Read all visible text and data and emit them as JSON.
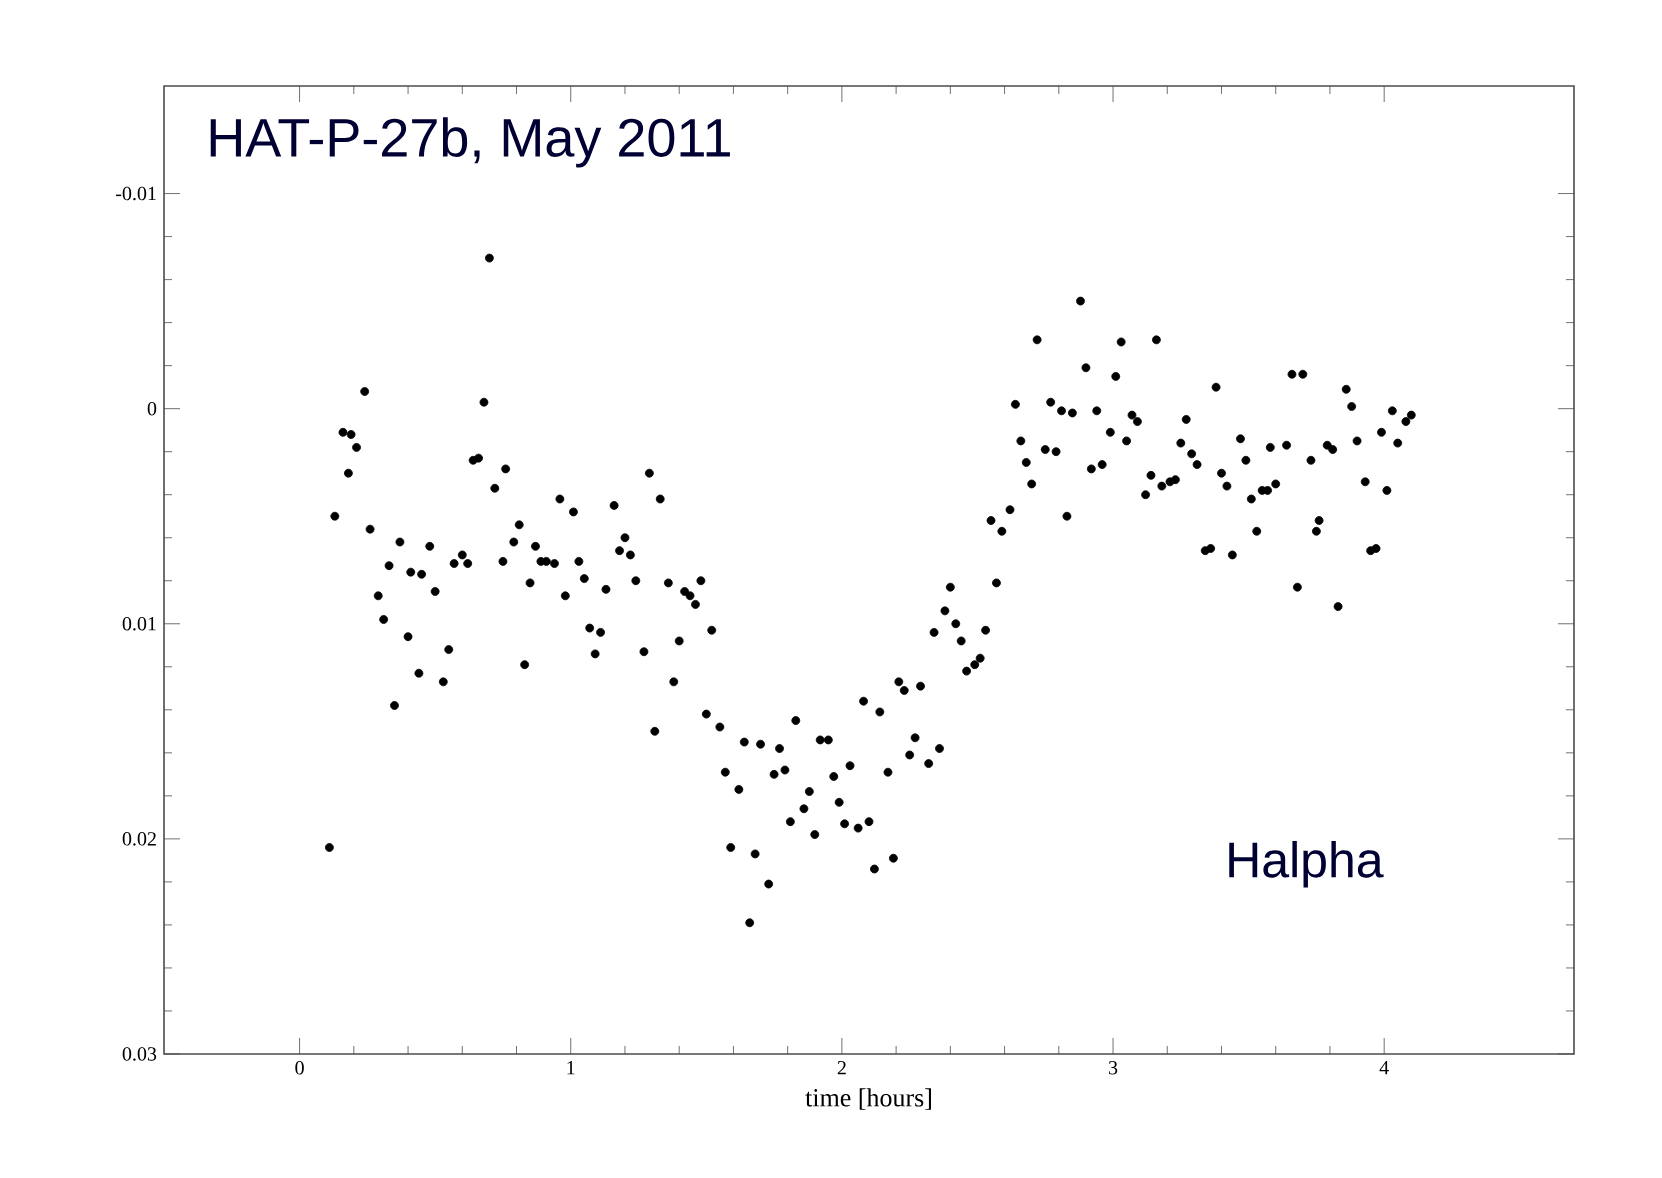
{
  "chart_data": {
    "type": "scatter",
    "title": "HAT-P-27b, May 2011",
    "xlabel": "time [hours]",
    "annotations": [
      "Halpha"
    ],
    "marker": "circle",
    "xlim": [
      -0.5,
      4.7
    ],
    "ylim": [
      0.03,
      -0.015
    ],
    "xticks": [
      0,
      1,
      2,
      3,
      4
    ],
    "yticks": [
      -0.01,
      0,
      0.01,
      0.02,
      0.03
    ],
    "series": [
      {
        "color": "#000000",
        "x": [
          0.11,
          0.13,
          0.16,
          0.19,
          0.21,
          0.18,
          0.24,
          0.26,
          0.29,
          0.31,
          0.33,
          0.37,
          0.35,
          0.4,
          0.41,
          0.45,
          0.44,
          0.48,
          0.5,
          0.53,
          0.55,
          0.57,
          0.6,
          0.62,
          0.64,
          0.66,
          0.68,
          0.7,
          0.72,
          0.75,
          0.76,
          0.79,
          0.81,
          0.83,
          0.85,
          0.87,
          0.89,
          0.91,
          0.94,
          0.96,
          0.98,
          1.01,
          1.03,
          1.05,
          1.07,
          1.11,
          1.09,
          1.13,
          1.16,
          1.18,
          1.22,
          1.2,
          1.24,
          1.27,
          1.29,
          1.31,
          1.33,
          1.36,
          1.38,
          1.4,
          1.42,
          1.44,
          1.46,
          1.48,
          1.52,
          1.5,
          1.55,
          1.57,
          1.59,
          1.62,
          1.64,
          1.66,
          1.68,
          1.7,
          1.73,
          1.75,
          1.77,
          1.79,
          1.81,
          1.83,
          1.86,
          1.88,
          1.9,
          1.92,
          1.95,
          1.97,
          1.99,
          2.01,
          2.03,
          2.06,
          2.08,
          2.1,
          2.12,
          2.14,
          2.17,
          2.19,
          2.21,
          2.23,
          2.25,
          2.27,
          2.29,
          2.32,
          2.34,
          2.36,
          2.38,
          2.4,
          2.42,
          2.44,
          2.46,
          2.49,
          2.51,
          2.53,
          2.55,
          2.57,
          2.59,
          2.62,
          2.64,
          2.66,
          2.68,
          2.7,
          2.72,
          2.75,
          2.77,
          2.79,
          2.81,
          2.85,
          2.83,
          2.88,
          2.9,
          2.92,
          2.94,
          2.96,
          2.99,
          3.01,
          3.03,
          3.05,
          3.07,
          3.09,
          3.12,
          3.14,
          3.16,
          3.18,
          3.21,
          3.23,
          3.25,
          3.27,
          3.29,
          3.31,
          3.34,
          3.36,
          3.38,
          3.4,
          3.42,
          3.44,
          3.47,
          3.49,
          3.51,
          3.53,
          3.55,
          3.57,
          3.6,
          3.58,
          3.64,
          3.66,
          3.7,
          3.68,
          3.73,
          3.75,
          3.76,
          3.79,
          3.81,
          3.83,
          3.86,
          3.88,
          3.9,
          3.93,
          3.95,
          3.97,
          3.99,
          4.01,
          4.03,
          4.05,
          4.08,
          4.1
        ],
        "values": [
          0.0204,
          0.005,
          0.0011,
          0.0012,
          0.0018,
          0.003,
          -0.0008,
          0.0056,
          0.0087,
          0.0098,
          0.0073,
          0.0062,
          0.0138,
          0.0106,
          0.0076,
          0.0077,
          0.0123,
          0.0064,
          0.0085,
          0.0127,
          0.0112,
          0.0072,
          0.0068,
          0.0072,
          0.0024,
          0.0023,
          -0.0003,
          -0.007,
          0.0037,
          0.0071,
          0.0028,
          0.0062,
          0.0054,
          0.0119,
          0.0081,
          0.0064,
          0.0071,
          0.0071,
          0.0072,
          0.0042,
          0.0087,
          0.0048,
          0.0071,
          0.0079,
          0.0102,
          0.0104,
          0.0114,
          0.0084,
          0.0045,
          0.0066,
          0.0068,
          0.006,
          0.008,
          0.0113,
          0.003,
          0.015,
          0.0042,
          0.0081,
          0.0127,
          0.0108,
          0.0085,
          0.0087,
          0.0091,
          0.008,
          0.0103,
          0.0142,
          0.0148,
          0.0169,
          0.0204,
          0.0177,
          0.0155,
          0.0239,
          0.0207,
          0.0156,
          0.0221,
          0.017,
          0.0158,
          0.0168,
          0.0192,
          0.0145,
          0.0186,
          0.0178,
          0.0198,
          0.0154,
          0.0154,
          0.0171,
          0.0183,
          0.0193,
          0.0166,
          0.0195,
          0.0136,
          0.0192,
          0.0214,
          0.0141,
          0.0169,
          0.0209,
          0.0127,
          0.0131,
          0.0161,
          0.0153,
          0.0129,
          0.0165,
          0.0104,
          0.0158,
          0.0094,
          0.0083,
          0.01,
          0.0108,
          0.0122,
          0.0119,
          0.0116,
          0.0103,
          0.0052,
          0.0081,
          0.0057,
          0.0047,
          -0.0002,
          0.0015,
          0.0025,
          0.0035,
          -0.0032,
          0.0019,
          -0.0003,
          0.002,
          0.0001,
          0.0002,
          0.005,
          -0.005,
          -0.0019,
          0.0028,
          0.0001,
          0.0026,
          0.0011,
          -0.0015,
          -0.0031,
          0.0015,
          0.0003,
          0.0006,
          0.004,
          0.0031,
          -0.0032,
          0.0036,
          0.0034,
          0.0033,
          0.0016,
          0.0005,
          0.0021,
          0.0026,
          0.0066,
          0.0065,
          -0.001,
          0.003,
          0.0036,
          0.0068,
          0.0014,
          0.0024,
          0.0042,
          0.0057,
          0.0038,
          0.0038,
          0.0035,
          0.0018,
          0.0017,
          -0.0016,
          -0.0016,
          0.0083,
          0.0024,
          0.0057,
          0.0052,
          0.0017,
          0.0019,
          0.0092,
          -0.0009,
          -0.0001,
          0.0015,
          0.0034,
          0.0066,
          0.0065,
          0.0011,
          0.0038,
          0.0001,
          0.0016,
          0.0006,
          0.0003
        ]
      }
    ]
  }
}
